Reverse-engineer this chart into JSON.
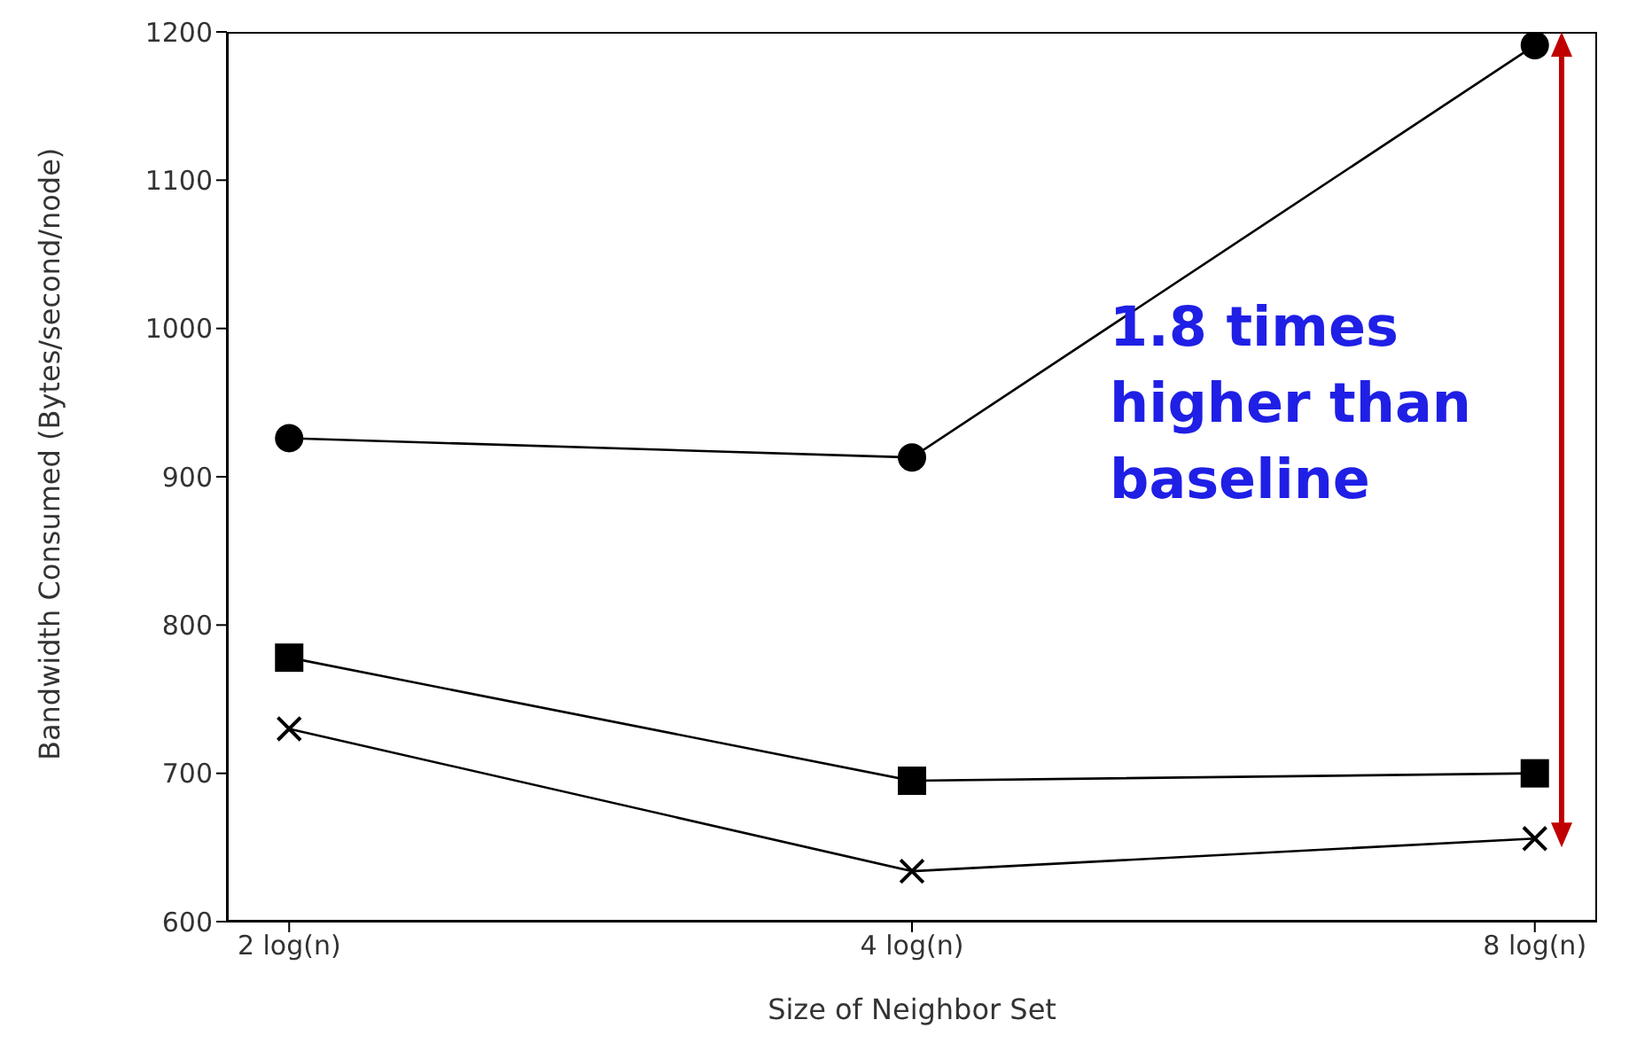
{
  "chart_data": {
    "type": "line",
    "xlabel": "Size of Neighbor Set",
    "ylabel": "Bandwidth Consumed (Bytes/second/node)",
    "categories": [
      "2 log(n)",
      "4 log(n)",
      "8 log(n)"
    ],
    "series": [
      {
        "color": "#000000",
        "marker": "circle",
        "values": [
          926,
          913,
          1191
        ]
      },
      {
        "color": "#000000",
        "marker": "square",
        "values": [
          778,
          695,
          700
        ]
      },
      {
        "color": "#000000",
        "marker": "cross",
        "values": [
          730,
          634,
          656
        ]
      }
    ],
    "ylim": [
      600,
      1200
    ],
    "yticks": [
      600,
      700,
      800,
      900,
      1000,
      1100,
      1200
    ],
    "grid": false,
    "legend": false,
    "line_style": "solid",
    "annotations": [
      "1.8 times higher than baseline"
    ]
  }
}
